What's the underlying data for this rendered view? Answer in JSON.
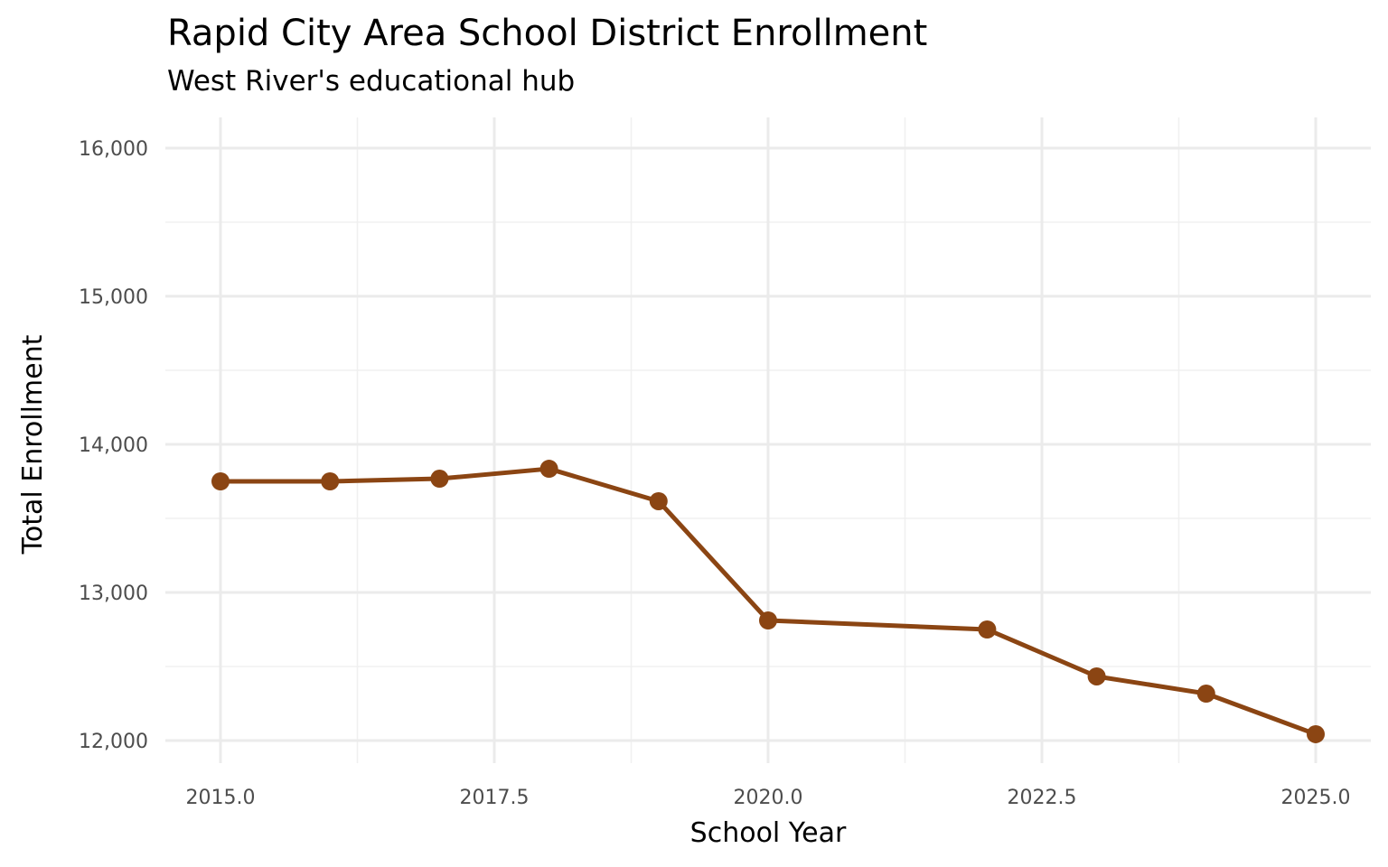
{
  "chart_data": {
    "type": "line",
    "title": "Rapid City Area School District Enrollment",
    "subtitle": "West River's educational hub",
    "xlabel": "School Year",
    "ylabel": "Total Enrollment",
    "x": [
      2015,
      2016,
      2017,
      2018,
      2019,
      2020,
      2022,
      2023,
      2024,
      2025
    ],
    "values": [
      13750,
      13750,
      13768,
      13835,
      13616,
      12811,
      12750,
      12433,
      12317,
      12043
    ],
    "xlim": [
      2014.5,
      2025.5
    ],
    "ylim": [
      11850,
      16200
    ],
    "x_ticks": [
      "2015.0",
      "2017.5",
      "2020.0",
      "2022.5",
      "2025.0"
    ],
    "x_tick_values": [
      2015,
      2017.5,
      2020,
      2022.5,
      2025
    ],
    "y_ticks": [
      "12,000",
      "13,000",
      "14,000",
      "15,000",
      "16,000"
    ],
    "y_tick_values": [
      12000,
      13000,
      14000,
      15000,
      16000
    ],
    "grid": true,
    "legend": "none",
    "color": "#8B4513"
  }
}
